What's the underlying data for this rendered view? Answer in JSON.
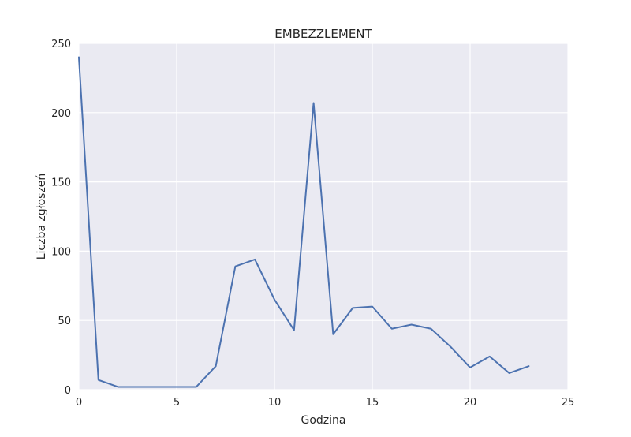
{
  "chart_data": {
    "type": "line",
    "title": "EMBEZZLEMENT",
    "xlabel": "Godzina",
    "ylabel": "Liczba zgłoszeń",
    "xlim": [
      0,
      25
    ],
    "ylim": [
      0,
      250
    ],
    "xticks": [
      0,
      5,
      10,
      15,
      20,
      25
    ],
    "yticks": [
      0,
      50,
      100,
      150,
      200,
      250
    ],
    "grid": true,
    "legend": "none",
    "series": [
      {
        "color": "#4c72b0",
        "x": [
          0,
          1,
          2,
          3,
          4,
          5,
          6,
          7,
          8,
          9,
          10,
          11,
          12,
          13,
          14,
          15,
          16,
          17,
          18,
          19,
          20,
          21,
          22,
          23
        ],
        "y": [
          240,
          7,
          2,
          2,
          2,
          2,
          2,
          17,
          89,
          94,
          65,
          43,
          207,
          40,
          59,
          60,
          44,
          47,
          44,
          31,
          16,
          24,
          12,
          17
        ]
      }
    ]
  },
  "colors": {
    "plot_background": "#eaeaf2",
    "grid": "#ffffff",
    "text": "#262626",
    "line": "#4c72b0"
  }
}
